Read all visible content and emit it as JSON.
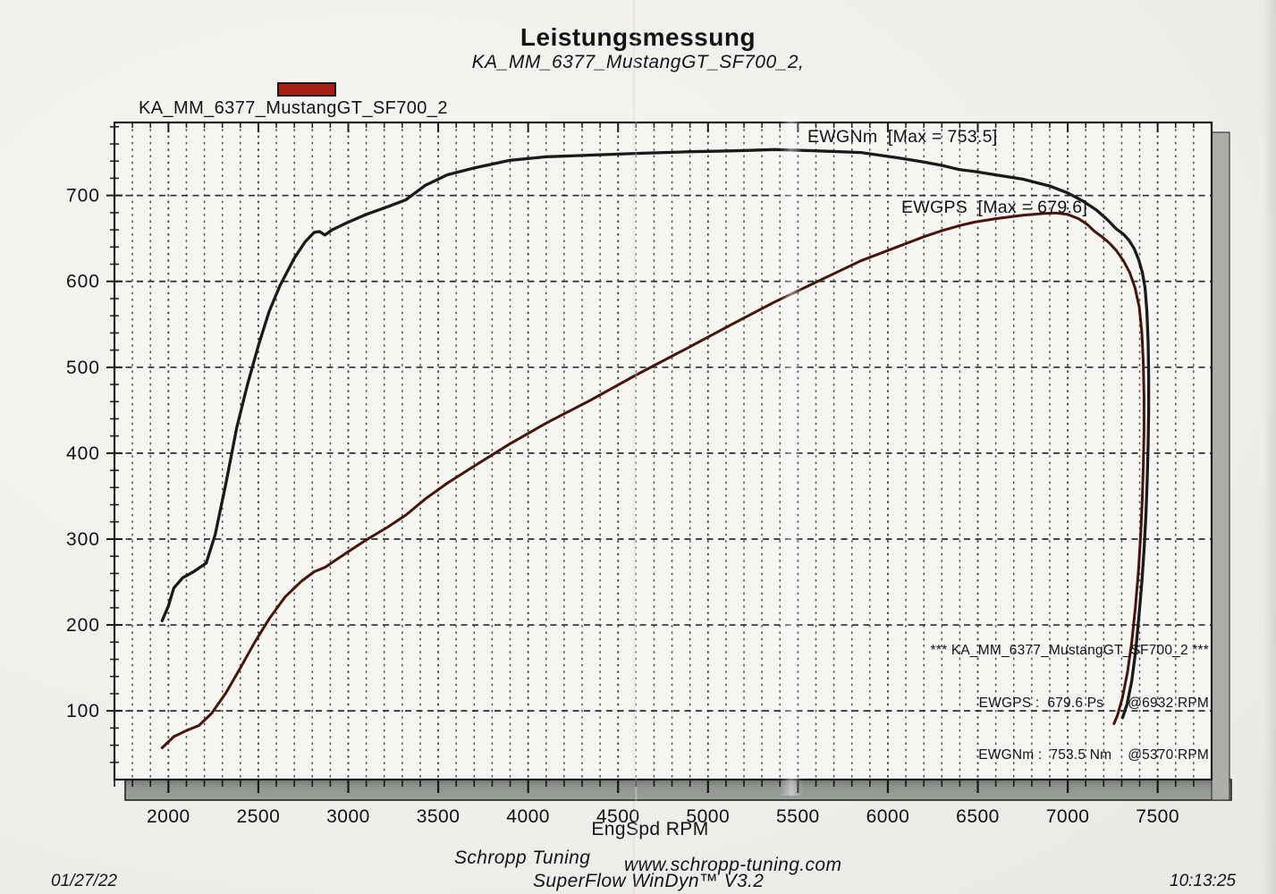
{
  "header": {
    "title": "Leistungsmessung",
    "subtitle": "KA_MM_6377_MustangGT_SF700_2,"
  },
  "legend": {
    "swatch_color": "#a81f16",
    "label": "KA_MM_6377_MustangGT_SF700_2"
  },
  "curve_labels": {
    "torque": "EWGNm  [Max = 753.5]",
    "power": "EWGPS  [Max = 679.6]"
  },
  "stats_box": {
    "line1": "*** KA_MM_6377_MustangGT_SF700_2 ***",
    "line2": "EWGPS :  679.6 Ps      @6932 RPM",
    "line3": "EWGNm :  753.5 Nm    @5370 RPM"
  },
  "footer": {
    "shop": "Schropp Tuning",
    "url": "www.schropp-tuning.com",
    "software": "SuperFlow WinDyn™ V3.2",
    "date": "01/27/22",
    "time": "10:13:25"
  },
  "chart_data": {
    "type": "line",
    "title": "Leistungsmessung",
    "subtitle": "KA_MM_6377_MustangGT_SF700_2,",
    "xlabel": "EngSpd RPM",
    "ylabel": "",
    "xlim": [
      1700,
      7800
    ],
    "ylim": [
      20,
      785
    ],
    "x_ticks_major": [
      2000,
      2500,
      3000,
      3500,
      4000,
      4500,
      5000,
      5500,
      6000,
      6500,
      7000,
      7500
    ],
    "x_minor_step": 100,
    "y_ticks_major": [
      100,
      200,
      300,
      400,
      500,
      600,
      700
    ],
    "y_minor_step": 20,
    "grid": "dashed",
    "legend_position": "top-left",
    "series": [
      {
        "name": "EWGNm",
        "unit": "Nm",
        "max": 753.5,
        "max_at_rpm": 5370,
        "color": "#1a1a1a",
        "points": [
          [
            1965,
            205
          ],
          [
            2000,
            222
          ],
          [
            2030,
            243
          ],
          [
            2080,
            255
          ],
          [
            2140,
            262
          ],
          [
            2210,
            272
          ],
          [
            2260,
            305
          ],
          [
            2320,
            365
          ],
          [
            2380,
            430
          ],
          [
            2440,
            480
          ],
          [
            2500,
            525
          ],
          [
            2560,
            565
          ],
          [
            2620,
            595
          ],
          [
            2700,
            627
          ],
          [
            2760,
            646
          ],
          [
            2810,
            657
          ],
          [
            2840,
            658
          ],
          [
            2870,
            654
          ],
          [
            2910,
            660
          ],
          [
            2990,
            668
          ],
          [
            3100,
            678
          ],
          [
            3220,
            687
          ],
          [
            3320,
            695
          ],
          [
            3430,
            712
          ],
          [
            3550,
            724
          ],
          [
            3700,
            732
          ],
          [
            3900,
            741
          ],
          [
            4100,
            745
          ],
          [
            4350,
            747
          ],
          [
            4600,
            749
          ],
          [
            4900,
            751
          ],
          [
            5150,
            752
          ],
          [
            5370,
            753.5
          ],
          [
            5600,
            752
          ],
          [
            5850,
            750
          ],
          [
            6050,
            744
          ],
          [
            6200,
            739
          ],
          [
            6300,
            735
          ],
          [
            6400,
            730
          ],
          [
            6480,
            728
          ],
          [
            6600,
            724
          ],
          [
            6750,
            719
          ],
          [
            6900,
            711
          ],
          [
            7000,
            703
          ],
          [
            7080,
            694
          ],
          [
            7160,
            683
          ],
          [
            7220,
            672
          ],
          [
            7270,
            661
          ],
          [
            7310,
            655
          ],
          [
            7340,
            648
          ],
          [
            7370,
            638
          ],
          [
            7395,
            625
          ],
          [
            7415,
            610
          ],
          [
            7430,
            592
          ],
          [
            7440,
            565
          ],
          [
            7447,
            530
          ],
          [
            7450,
            490
          ],
          [
            7450,
            450
          ],
          [
            7447,
            410
          ],
          [
            7442,
            370
          ],
          [
            7435,
            330
          ],
          [
            7425,
            290
          ],
          [
            7412,
            250
          ],
          [
            7396,
            210
          ],
          [
            7378,
            170
          ],
          [
            7356,
            135
          ],
          [
            7330,
            108
          ],
          [
            7305,
            92
          ]
        ]
      },
      {
        "name": "EWGPS",
        "unit": "Ps",
        "max": 679.6,
        "max_at_rpm": 6932,
        "color": "#43150d",
        "points": [
          [
            1965,
            57
          ],
          [
            2030,
            70
          ],
          [
            2100,
            77
          ],
          [
            2170,
            83
          ],
          [
            2240,
            97
          ],
          [
            2320,
            121
          ],
          [
            2400,
            150
          ],
          [
            2480,
            180
          ],
          [
            2560,
            207
          ],
          [
            2650,
            233
          ],
          [
            2740,
            251
          ],
          [
            2810,
            262
          ],
          [
            2870,
            267
          ],
          [
            2990,
            284
          ],
          [
            3100,
            299
          ],
          [
            3220,
            314
          ],
          [
            3320,
            328
          ],
          [
            3430,
            347
          ],
          [
            3550,
            365
          ],
          [
            3700,
            385
          ],
          [
            3900,
            411
          ],
          [
            4100,
            435
          ],
          [
            4350,
            462
          ],
          [
            4600,
            491
          ],
          [
            4900,
            524
          ],
          [
            5150,
            552
          ],
          [
            5370,
            576
          ],
          [
            5600,
            599
          ],
          [
            5850,
            624
          ],
          [
            6050,
            640
          ],
          [
            6200,
            652
          ],
          [
            6300,
            659
          ],
          [
            6400,
            665
          ],
          [
            6480,
            669
          ],
          [
            6600,
            673
          ],
          [
            6750,
            677
          ],
          [
            6870,
            679
          ],
          [
            6932,
            679.6
          ],
          [
            7000,
            678
          ],
          [
            7060,
            673
          ],
          [
            7110,
            666
          ],
          [
            7150,
            658
          ],
          [
            7190,
            652
          ],
          [
            7230,
            645
          ],
          [
            7270,
            636
          ],
          [
            7310,
            624
          ],
          [
            7345,
            610
          ],
          [
            7375,
            592
          ],
          [
            7398,
            570
          ],
          [
            7412,
            540
          ],
          [
            7420,
            505
          ],
          [
            7424,
            465
          ],
          [
            7424,
            425
          ],
          [
            7420,
            385
          ],
          [
            7414,
            345
          ],
          [
            7406,
            305
          ],
          [
            7393,
            262
          ],
          [
            7376,
            220
          ],
          [
            7356,
            180
          ],
          [
            7332,
            145
          ],
          [
            7304,
            115
          ],
          [
            7277,
            95
          ],
          [
            7257,
            85
          ]
        ]
      }
    ]
  }
}
